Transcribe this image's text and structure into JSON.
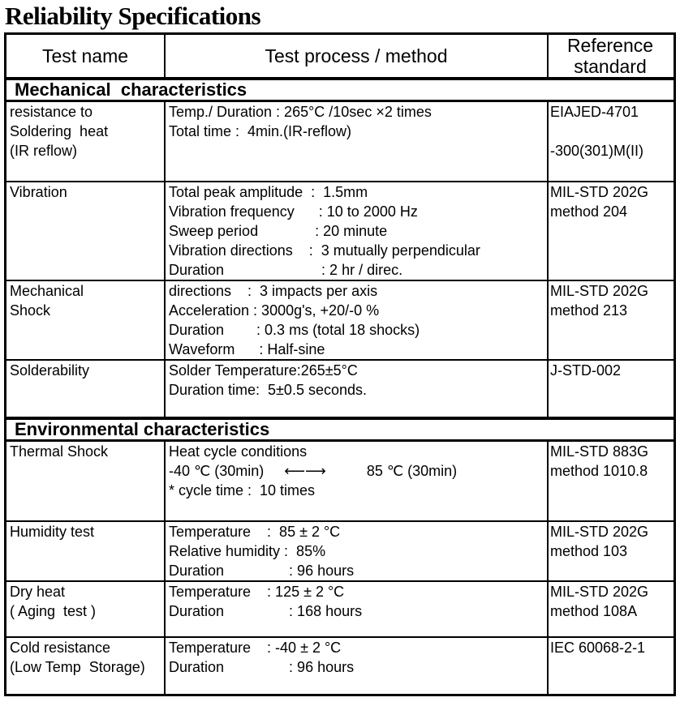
{
  "title": "Reliability Specifications",
  "headers": [
    "Test name",
    "Test process / method",
    "Reference standard"
  ],
  "sections": [
    {
      "name": "Mechanical  characteristics",
      "rows": [
        {
          "name": [
            "resistance to",
            "Soldering  heat",
            "(IR reflow)"
          ],
          "method": [
            "Temp./ Duration : 265°C /10sec ×2 times",
            "Total time :  4min.(IR-reflow)"
          ],
          "ref": [
            "EIAJED-4701",
            "",
            "-300(301)M(II)"
          ]
        },
        {
          "name": [
            "Vibration"
          ],
          "method": [
            "Total peak amplitude  :  1.5mm",
            "Vibration frequency      : 10 to 2000 Hz",
            "Sweep period              : 20 minute",
            "Vibration directions    :  3 mutually perpendicular",
            "Duration                        : 2 hr / direc."
          ],
          "ref": [
            "MIL-STD 202G",
            "method 204"
          ]
        },
        {
          "name": [
            "Mechanical",
            "Shock"
          ],
          "method": [
            "directions    :  3 impacts per axis",
            "Acceleration : 3000g's, +20/-0 %",
            "Duration        : 0.3 ms (total 18 shocks)",
            "Waveform      : Half-sine"
          ],
          "ref": [
            "MIL-STD 202G",
            "method 213"
          ]
        },
        {
          "name": [
            "Solderability"
          ],
          "method": [
            "Solder Temperature:265±5°C",
            "Duration time:  5±0.5 seconds."
          ],
          "ref": [
            "J-STD-002"
          ]
        }
      ]
    },
    {
      "name": "Environmental characteristics",
      "rows": [
        {
          "name": [
            "Thermal Shock"
          ],
          "method": [
            "Heat cycle conditions",
            "-40 ℃ (30min)     ⟵⟶          85 ℃ (30min)",
            "* cycle time :  10 times"
          ],
          "ref": [
            "MIL-STD 883G",
            "method 1010.8"
          ]
        },
        {
          "name": [
            "Humidity test"
          ],
          "method": [
            "Temperature    :  85 ± 2 °C",
            "Relative humidity :  85%",
            "Duration                : 96 hours"
          ],
          "ref": [
            "MIL-STD 202G",
            "method 103"
          ]
        },
        {
          "name": [
            "Dry heat",
            "( Aging  test )"
          ],
          "method": [
            "Temperature    : 125 ± 2 °C",
            "Duration                : 168 hours"
          ],
          "ref": [
            "MIL-STD 202G",
            "method 108A"
          ]
        },
        {
          "name": [
            "Cold resistance",
            "(Low Temp  Storage)"
          ],
          "method": [
            "Temperature    : -40 ± 2 °C",
            "Duration                : 96 hours"
          ],
          "ref": [
            "IEC 60068-2-1"
          ]
        }
      ]
    }
  ]
}
